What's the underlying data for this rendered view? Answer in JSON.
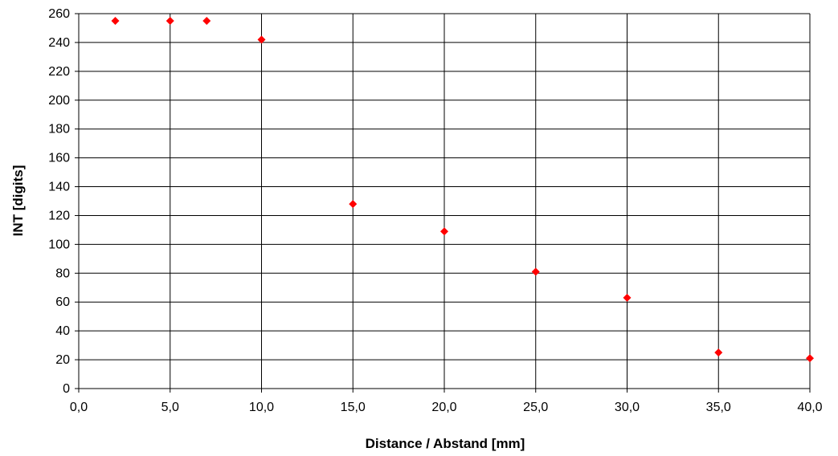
{
  "chart_data": {
    "type": "scatter",
    "title": "",
    "xlabel": "Distance / Abstand [mm]",
    "ylabel": "INT [digits]",
    "xlim": [
      0,
      40
    ],
    "ylim": [
      0,
      260
    ],
    "x_ticks": [
      "0,0",
      "5,0",
      "10,0",
      "15,0",
      "20,0",
      "25,0",
      "30,0",
      "35,0",
      "40,0"
    ],
    "y_ticks": [
      "0",
      "20",
      "40",
      "60",
      "80",
      "100",
      "120",
      "140",
      "160",
      "180",
      "200",
      "220",
      "240",
      "260"
    ],
    "x_tick_values": [
      0,
      5,
      10,
      15,
      20,
      25,
      30,
      35,
      40
    ],
    "y_tick_values": [
      0,
      20,
      40,
      60,
      80,
      100,
      120,
      140,
      160,
      180,
      200,
      220,
      240,
      260
    ],
    "grid": true,
    "marker": "diamond",
    "marker_color": "#ff0000",
    "series": [
      {
        "x": [
          2,
          5,
          7,
          10,
          15,
          20,
          25,
          30,
          35,
          40
        ],
        "y": [
          255,
          255,
          255,
          242,
          128,
          109,
          81,
          63,
          25,
          21
        ]
      }
    ]
  }
}
